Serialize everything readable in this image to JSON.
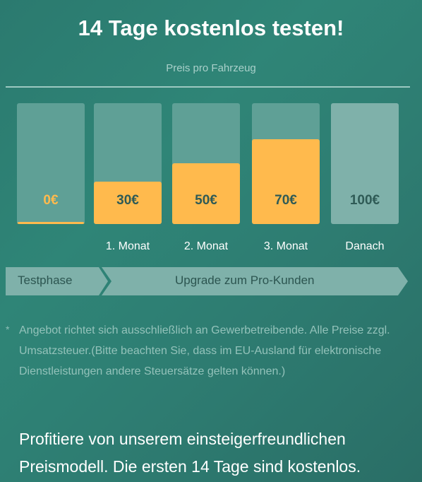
{
  "header": {
    "title": "14 Tage kostenlos testen!",
    "subtitle": "Preis pro Fahrzeug"
  },
  "pricing": {
    "tiers": [
      {
        "price": "0€",
        "level_percent": 2,
        "label": ""
      },
      {
        "price": "30€",
        "level_percent": 35,
        "label": "1. Monat"
      },
      {
        "price": "50€",
        "level_percent": 50,
        "label": "2. Monat"
      },
      {
        "price": "70€",
        "level_percent": 70,
        "label": "3. Monat"
      },
      {
        "price": "100€",
        "level_percent": 100,
        "label": "Danach"
      }
    ]
  },
  "phases": {
    "trial": "Testphase",
    "upgrade": "Upgrade zum Pro-Kunden"
  },
  "footnote": {
    "marker": "*",
    "text": "Angebot richtet sich ausschließlich an Gewerbetreibende. Alle Preise zzgl. Umsatzsteuer.(Bitte beachten Sie, dass im EU-Ausland für elektronische Dienstleistungen andere Steuersätze gelten können.)"
  },
  "promo": {
    "text": "Profitiere von unserem einsteigerfreundlichen Preismodell. Die ersten 14 Tage sind kostenlos."
  },
  "colors": {
    "background": "#2e7d72",
    "bar_track": "#5fa096",
    "bar_fill": "#ffba4d",
    "bar_full": "#7fb1aa",
    "phase_arrow": "#7fb1aa"
  }
}
